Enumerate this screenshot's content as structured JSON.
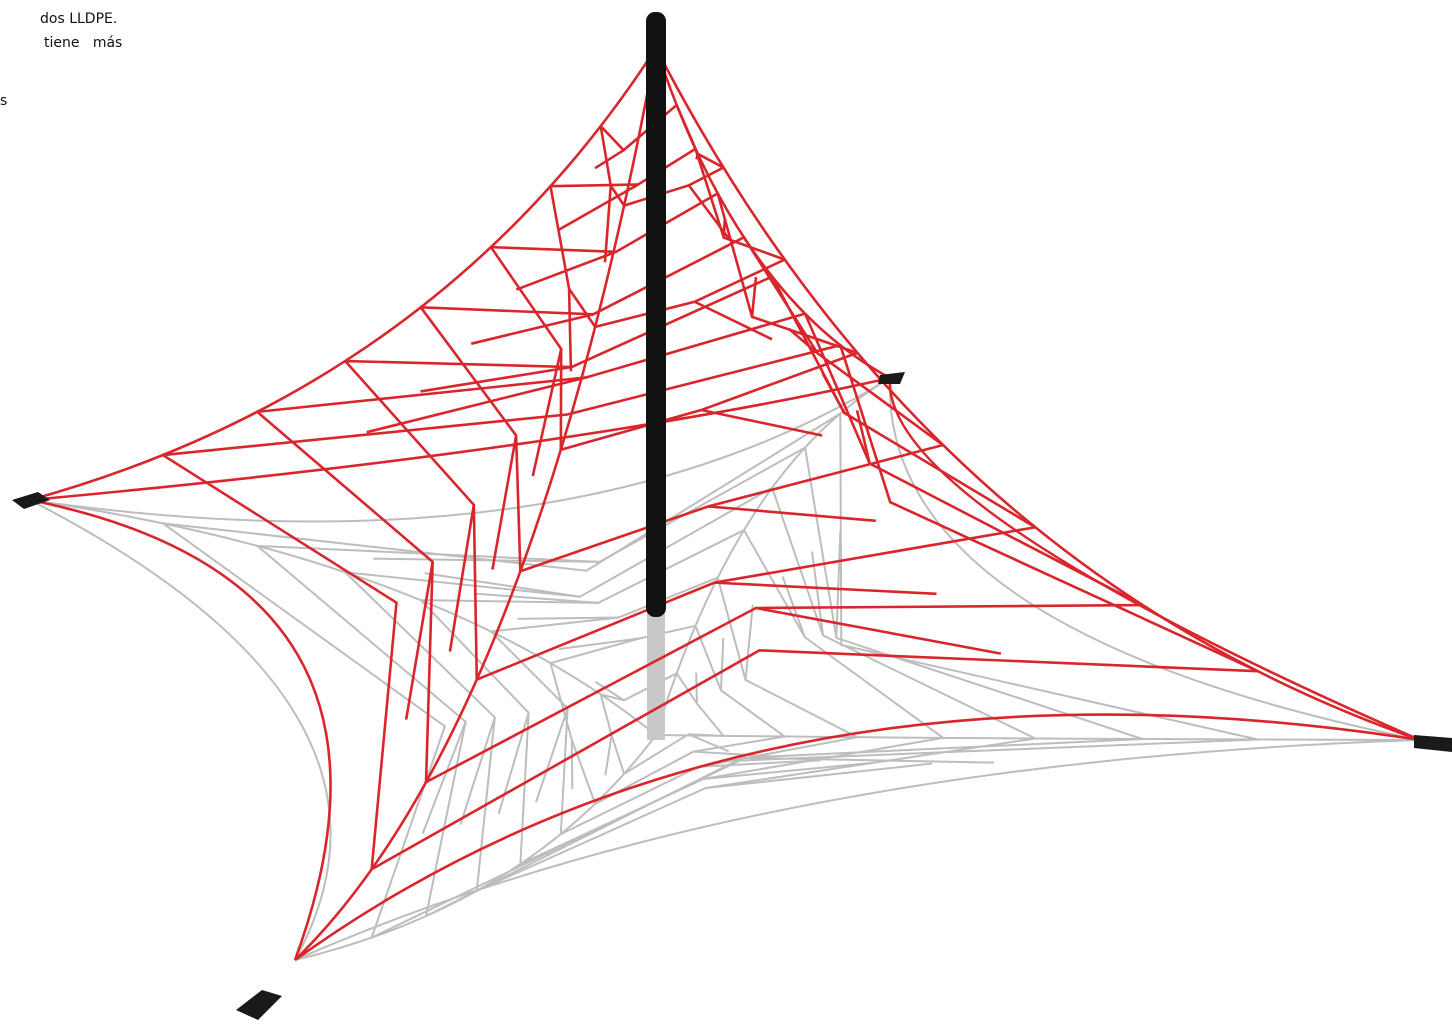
{
  "text_lines": [
    "dos LLDPE.",
    "tiene   más",
    "s"
  ]
}
